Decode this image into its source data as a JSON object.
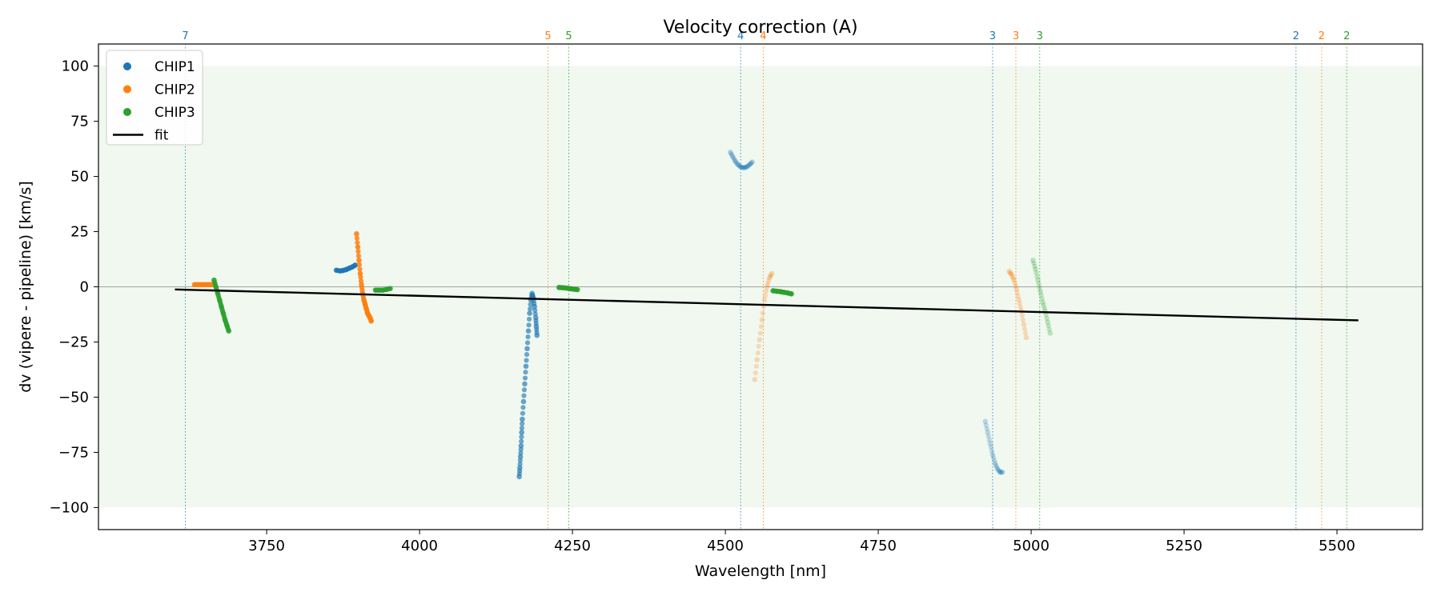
{
  "chart_data": {
    "type": "scatter",
    "title": "Velocity correction (A)",
    "xlabel": "Wavelength [nm]",
    "ylabel": "dv (vipere - pipeline) [km/s]",
    "xlim": [
      3475,
      5640
    ],
    "ylim": [
      -110,
      110
    ],
    "xticks": [
      3750,
      4000,
      4250,
      4500,
      4750,
      5000,
      5250,
      5500
    ],
    "yticks": [
      -100,
      -75,
      -50,
      -25,
      0,
      25,
      50,
      75,
      100
    ],
    "shaded_band": [
      -100,
      100
    ],
    "zero_line": 0,
    "legend_position": "upper-left",
    "colors": {
      "CHIP1": "#1f77b4",
      "CHIP2": "#ff7f0e",
      "CHIP3": "#2ca02c",
      "fit": "#000000",
      "band": "#2ca02c"
    },
    "series": [
      {
        "name": "CHIP1",
        "legend": "CHIP1",
        "segments": [
          {
            "alpha": 1.0,
            "x": [
              3864,
              3870,
              3875,
              3880,
              3885,
              3890,
              3895
            ],
            "y": [
              7.5,
              7.2,
              7.4,
              7.8,
              8.4,
              9.0,
              9.8
            ]
          },
          {
            "alpha": 0.75,
            "x": [
              4163,
              4164,
              4165,
              4166,
              4167,
              4168,
              4170,
              4172,
              4174,
              4176,
              4178,
              4180,
              4182,
              4184,
              4186,
              4188,
              4190,
              4191,
              4192
            ],
            "y": [
              -86,
              -82,
              -77,
              -72,
              -66,
              -60,
              -52,
              -44,
              -36,
              -28,
              -20,
              -12,
              -6,
              -3,
              -5,
              -9,
              -14,
              -18,
              -22
            ]
          },
          {
            "alpha": 0.3,
            "x": [
              4508,
              4512,
              4516,
              4520,
              4524,
              4528,
              4532,
              4536,
              4540,
              4544
            ],
            "y": [
              61,
              59,
              57,
              55.5,
              54.5,
              54,
              54,
              54.5,
              55.5,
              56.5
            ]
          },
          {
            "alpha": 0.3,
            "x": [
              4925,
              4929,
              4933,
              4937,
              4941,
              4945,
              4949,
              4953
            ],
            "y": [
              -61,
              -66,
              -71,
              -76,
              -80,
              -82.5,
              -84,
              -84
            ]
          }
        ]
      },
      {
        "name": "CHIP2",
        "legend": "CHIP2",
        "segments": [
          {
            "alpha": 1.0,
            "x": [
              3632,
              3638,
              3644,
              3650,
              3656,
              3662
            ],
            "y": [
              1,
              1,
              1,
              1,
              1,
              1
            ]
          },
          {
            "alpha": 1.0,
            "x": [
              3897,
              3899,
              3901,
              3903,
              3905,
              3907,
              3909,
              3911,
              3913,
              3915,
              3917,
              3919,
              3921
            ],
            "y": [
              24,
              18,
              12,
              6,
              1,
              -3,
              -6,
              -8,
              -10,
              -12,
              -13,
              -14,
              -15.5
            ]
          },
          {
            "alpha": 0.3,
            "x": [
              4548,
              4552,
              4556,
              4560,
              4564,
              4568,
              4572,
              4576
            ],
            "y": [
              -42,
              -33,
              -24,
              -15,
              -6,
              0,
              4,
              6
            ]
          },
          {
            "alpha": 0.3,
            "x": [
              4964,
              4968,
              4972,
              4976,
              4980,
              4984,
              4988,
              4992
            ],
            "y": [
              7,
              5.5,
              3,
              -1,
              -6,
              -11,
              -17,
              -23
            ]
          }
        ]
      },
      {
        "name": "CHIP3",
        "legend": "CHIP3",
        "segments": [
          {
            "alpha": 1.0,
            "x": [
              3664,
              3667,
              3670,
              3673,
              3676,
              3679,
              3682,
              3685,
              3688
            ],
            "y": [
              3,
              0,
              -3,
              -6,
              -9,
              -12,
              -15,
              -17.5,
              -20
            ]
          },
          {
            "alpha": 1.0,
            "x": [
              3928,
              3934,
              3940,
              3946,
              3952
            ],
            "y": [
              -1.5,
              -1.5,
              -1.5,
              -1.2,
              -0.8
            ]
          },
          {
            "alpha": 1.0,
            "x": [
              4228,
              4233,
              4238,
              4243,
              4248,
              4253,
              4258
            ],
            "y": [
              -0.3,
              -0.4,
              -0.5,
              -0.7,
              -0.9,
              -1.1,
              -1.3
            ]
          },
          {
            "alpha": 1.0,
            "x": [
              4578,
              4584,
              4590,
              4596,
              4602,
              4608
            ],
            "y": [
              -1.8,
              -2.0,
              -2.2,
              -2.5,
              -2.8,
              -3.2
            ]
          },
          {
            "alpha": 0.3,
            "x": [
              5003,
              5007,
              5011,
              5015,
              5019,
              5023,
              5027,
              5031
            ],
            "y": [
              12,
              8,
              3,
              -2,
              -7,
              -11,
              -16,
              -21
            ]
          }
        ]
      }
    ],
    "fit": {
      "name": "fit",
      "legend": "fit",
      "x": [
        3600,
        5535
      ],
      "y": [
        -1.2,
        -15.2
      ]
    },
    "order_lines": [
      {
        "x": 3617,
        "label": "7",
        "chip": "CHIP1"
      },
      {
        "x": 4210,
        "label": "5",
        "chip": "CHIP2"
      },
      {
        "x": 4244,
        "label": "5",
        "chip": "CHIP3"
      },
      {
        "x": 4525,
        "label": "4",
        "chip": "CHIP1"
      },
      {
        "x": 4562,
        "label": "4",
        "chip": "CHIP2"
      },
      {
        "x": 4937,
        "label": "3",
        "chip": "CHIP1"
      },
      {
        "x": 4975,
        "label": "3",
        "chip": "CHIP2"
      },
      {
        "x": 5014,
        "label": "3",
        "chip": "CHIP3"
      },
      {
        "x": 5433,
        "label": "2",
        "chip": "CHIP1"
      },
      {
        "x": 5475,
        "label": "2",
        "chip": "CHIP2"
      },
      {
        "x": 5516,
        "label": "2",
        "chip": "CHIP3"
      }
    ]
  }
}
